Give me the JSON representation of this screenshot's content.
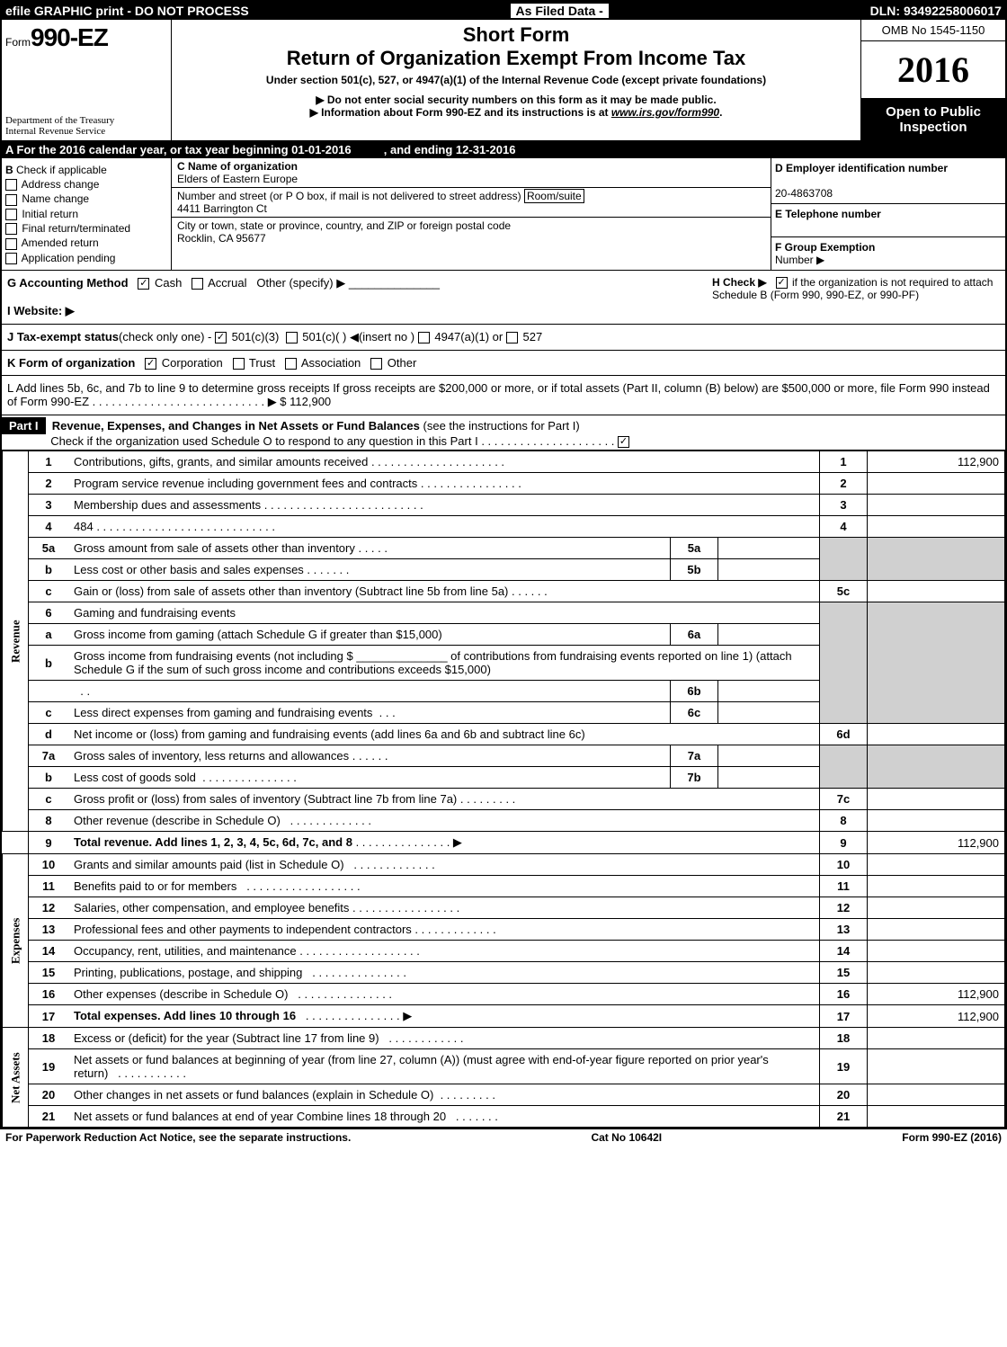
{
  "top_bar": {
    "left": "efile GRAPHIC print - DO NOT PROCESS",
    "mid": "As Filed Data -",
    "right": "DLN: 93492258006017"
  },
  "header": {
    "form_prefix": "Form",
    "form_number": "990-EZ",
    "dept": "Department of the Treasury",
    "irs": "Internal Revenue Service",
    "short_form": "Short Form",
    "title": "Return of Organization Exempt From Income Tax",
    "under_section": "Under section 501(c), 527, or 4947(a)(1) of the Internal Revenue Code (except private foundations)",
    "do_not_enter": "▶ Do not enter social security numbers on this form as it may be made public.",
    "info_about": "▶ Information about Form 990-EZ and its instructions is at ",
    "info_link": "www.irs.gov/form990",
    "omb": "OMB No 1545-1150",
    "year": "2016",
    "open_public1": "Open to Public",
    "open_public2": "Inspection"
  },
  "row_a": {
    "label": "A  For the 2016 calendar year, or tax year beginning 01-01-2016",
    "ending": ", and ending 12-31-2016"
  },
  "section_b": {
    "title": "B",
    "check_if": "Check if applicable",
    "addr_change": "Address change",
    "name_change": "Name change",
    "initial_return": "Initial return",
    "final_return": "Final return/terminated",
    "amended": "Amended return",
    "app_pending": "Application pending"
  },
  "section_c": {
    "c_label": "C Name of organization",
    "org_name": "Elders of Eastern Europe",
    "street_label": "Number and street (or P  O  box, if mail is not delivered to street address)",
    "room_label": "Room/suite",
    "street": "4411 Barrington Ct",
    "city_label": "City or town, state or province, country, and ZIP or foreign postal code",
    "city": "Rocklin, CA  95677"
  },
  "section_d": {
    "d_label": "D Employer identification number",
    "ein": "20-4863708",
    "e_label": "E Telephone number",
    "f_label": "F Group Exemption",
    "f_number": "Number     ▶"
  },
  "row_g": {
    "label": "G Accounting Method",
    "cash": "Cash",
    "accrual": "Accrual",
    "other": "Other (specify) ▶",
    "h_label": "H    Check ▶",
    "h_text": "if the organization is not required to attach Schedule B (Form 990, 990-EZ, or 990-PF)"
  },
  "row_i": {
    "label": "I Website: ▶"
  },
  "row_j": {
    "label": "J Tax-exempt status",
    "suffix": "(check only one) -",
    "c3": "501(c)(3)",
    "c_other": "501(c)(  )",
    "insert": "◀(insert no )",
    "4947": "4947(a)(1) or",
    "527": "527"
  },
  "row_k": {
    "label": "K Form of organization",
    "corp": "Corporation",
    "trust": "Trust",
    "assoc": "Association",
    "other": "Other"
  },
  "row_l": {
    "text": "L Add lines 5b, 6c, and 7b to line 9 to determine gross receipts  If gross receipts are $200,000 or more, or if total assets (Part II, column (B) below) are $500,000 or more, file Form 990 instead of Form 990-EZ",
    "amount_label": "▶ $ 112,900"
  },
  "part1": {
    "label": "Part I",
    "title": "Revenue, Expenses, and Changes in Net Assets or Fund Balances",
    "subtitle": "(see the instructions for Part I)",
    "check_note": "Check if the organization used Schedule O to respond to any question in this Part I"
  },
  "sections": {
    "revenue": "Revenue",
    "expenses": "Expenses",
    "netassets": "Net Assets"
  },
  "lines": {
    "l1": {
      "num": "1",
      "desc": "Contributions, gifts, grants, and similar amounts received",
      "amt_num": "1",
      "amt": "112,900"
    },
    "l2": {
      "num": "2",
      "desc": "Program service revenue including government fees and contracts",
      "amt_num": "2",
      "amt": ""
    },
    "l3": {
      "num": "3",
      "desc": "Membership dues and assessments",
      "amt_num": "3",
      "amt": ""
    },
    "l4": {
      "num": "4",
      "desc": "484",
      "amt_num": "4",
      "amt": ""
    },
    "l5a": {
      "num": "5a",
      "desc": "Gross amount from sale of assets other than inventory",
      "sub_num": "5a"
    },
    "l5b": {
      "num": "b",
      "desc": "Less  cost or other basis and sales expenses",
      "sub_num": "5b"
    },
    "l5c": {
      "num": "c",
      "desc": "Gain or (loss) from sale of assets other than inventory (Subtract line 5b from line 5a)",
      "amt_num": "5c",
      "amt": ""
    },
    "l6": {
      "num": "6",
      "desc": "Gaming and fundraising events"
    },
    "l6a": {
      "num": "a",
      "desc": "Gross income from gaming (attach Schedule G if greater than $15,000)",
      "sub_num": "6a"
    },
    "l6b": {
      "num": "b",
      "desc1": "Gross income from fundraising events (not including $",
      "desc2": "of contributions from fundraising events reported on line 1) (attach Schedule G if the sum of such gross income and contributions exceeds $15,000)",
      "sub_num": "6b"
    },
    "l6c": {
      "num": "c",
      "desc": "Less  direct expenses from gaming and fundraising events",
      "sub_num": "6c"
    },
    "l6d": {
      "num": "d",
      "desc": "Net income or (loss) from gaming and fundraising events (add lines 6a and 6b and subtract line 6c)",
      "amt_num": "6d",
      "amt": ""
    },
    "l7a": {
      "num": "7a",
      "desc": "Gross sales of inventory, less returns and allowances",
      "sub_num": "7a"
    },
    "l7b": {
      "num": "b",
      "desc": "Less  cost of goods sold",
      "sub_num": "7b"
    },
    "l7c": {
      "num": "c",
      "desc": "Gross profit or (loss) from sales of inventory (Subtract line 7b from line 7a)",
      "amt_num": "7c",
      "amt": ""
    },
    "l8": {
      "num": "8",
      "desc": "Other revenue (describe in Schedule O)",
      "amt_num": "8",
      "amt": ""
    },
    "l9": {
      "num": "9",
      "desc": "Total revenue. Add lines 1, 2, 3, 4, 5c, 6d, 7c, and 8",
      "amt_num": "9",
      "amt": "112,900"
    },
    "l10": {
      "num": "10",
      "desc": "Grants and similar amounts paid (list in Schedule O)",
      "amt_num": "10",
      "amt": ""
    },
    "l11": {
      "num": "11",
      "desc": "Benefits paid to or for members",
      "amt_num": "11",
      "amt": ""
    },
    "l12": {
      "num": "12",
      "desc": "Salaries, other compensation, and employee benefits",
      "amt_num": "12",
      "amt": ""
    },
    "l13": {
      "num": "13",
      "desc": "Professional fees and other payments to independent contractors",
      "amt_num": "13",
      "amt": ""
    },
    "l14": {
      "num": "14",
      "desc": "Occupancy, rent, utilities, and maintenance",
      "amt_num": "14",
      "amt": ""
    },
    "l15": {
      "num": "15",
      "desc": "Printing, publications, postage, and shipping",
      "amt_num": "15",
      "amt": ""
    },
    "l16": {
      "num": "16",
      "desc": "Other expenses (describe in Schedule O)",
      "amt_num": "16",
      "amt": "112,900"
    },
    "l17": {
      "num": "17",
      "desc": "Total expenses. Add lines 10 through 16",
      "amt_num": "17",
      "amt": "112,900"
    },
    "l18": {
      "num": "18",
      "desc": "Excess or (deficit) for the year (Subtract line 17 from line 9)",
      "amt_num": "18",
      "amt": ""
    },
    "l19": {
      "num": "19",
      "desc": "Net assets or fund balances at beginning of year (from line 27, column (A)) (must agree with end-of-year figure reported on prior year's return)",
      "amt_num": "19",
      "amt": ""
    },
    "l20": {
      "num": "20",
      "desc": "Other changes in net assets or fund balances (explain in Schedule O)",
      "amt_num": "20",
      "amt": ""
    },
    "l21": {
      "num": "21",
      "desc": "Net assets or fund balances at end of year  Combine lines 18 through 20",
      "amt_num": "21",
      "amt": ""
    }
  },
  "footer": {
    "left": "For Paperwork Reduction Act Notice, see the separate instructions.",
    "mid": "Cat  No  10642I",
    "right": "Form 990-EZ (2016)"
  }
}
